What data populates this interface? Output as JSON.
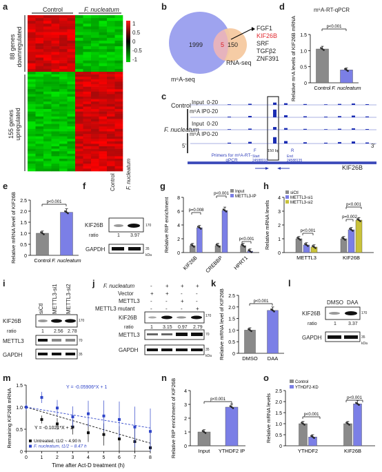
{
  "panels": {
    "a": {
      "letter": "a",
      "col_control": "Control",
      "col_fn": "F. nucleatum",
      "row_down": "88 genes downregulated",
      "row_up": "155 genes upregulated",
      "scale": [
        "1",
        "0.5",
        "0",
        "-0.5",
        "-1"
      ]
    },
    "b": {
      "letter": "b",
      "left_count": "1999",
      "overlap": "5",
      "right_count": "150",
      "left_label": "m⁶A-seq",
      "right_label": "RNA-seq",
      "genes": [
        "FGF1",
        "KIF26B",
        "SRF",
        "TGFβ2",
        "ZNF391"
      ],
      "highlight_color": "#e0292f"
    },
    "c": {
      "letter": "c",
      "cond_control": "Control",
      "cond_fn": "F. nucleatum",
      "track_input": "Input",
      "track_ip": "m⁶A IP",
      "scale": "0-20",
      "primers": "Primers for m⁶A-RT-qPCR",
      "start": "Start 24588010",
      "end": "End 24588135",
      "size": "150 bp",
      "f": "F",
      "r": "R",
      "gene": "KIF26B",
      "five": "5'",
      "three": "3'"
    },
    "d": {
      "letter": "d",
      "title": "m⁶A-RT-qPCR",
      "ylabel": "Relative m⁶A levels of KIF26B mRNA",
      "p": "p<0.001",
      "categories": [
        "Control",
        "F. nucleatum"
      ],
      "values": [
        1.05,
        0.4
      ],
      "yticks": [
        "0",
        "0.5",
        "1.0",
        "1.5"
      ]
    },
    "e": {
      "letter": "e",
      "ylabel": "Relative mRNA level of KIF26B",
      "p": "p<0.001",
      "categories": [
        "Control",
        "F. nucleatum"
      ],
      "values": [
        1.0,
        1.95
      ],
      "yticks": [
        "0",
        "0.5",
        "1.0",
        "1.5",
        "2.0",
        "2.5"
      ]
    },
    "f": {
      "letter": "f",
      "lanes": [
        "Control",
        "F. nucleatum"
      ],
      "rows": [
        "KIF26B",
        "GAPDH"
      ],
      "ratio_label": "ratio",
      "ratios": [
        "1",
        "3.97"
      ],
      "mw": [
        "170",
        "35"
      ],
      "kda": "kDa"
    },
    "g": {
      "letter": "g",
      "ylabel": "Relative RIP enrichment",
      "legend": [
        "Input",
        "METTL3-IP"
      ],
      "categories": [
        "KIF26B",
        "CREBBP",
        "HPRT1"
      ],
      "ps": [
        "p=0.008",
        "p<0.001",
        "p<0.001"
      ],
      "yticks": [
        "0",
        "2",
        "4",
        "6",
        "8"
      ]
    },
    "h": {
      "letter": "h",
      "ylabel": "Relative mRNA levels",
      "legend": [
        "siCtl",
        "METTL3-si1",
        "METTL3-si2"
      ],
      "categories": [
        "METTL3",
        "KIF26B"
      ],
      "ps": [
        "p<0.001",
        "p=0.002",
        "p<0.001"
      ],
      "yticks": [
        "0",
        "1",
        "2",
        "3",
        "4"
      ]
    },
    "i": {
      "letter": "i",
      "lanes": [
        "siCtl",
        "METTL3-si1",
        "METTL3-si2"
      ],
      "rows": [
        "KIF26B",
        "METTL3",
        "GAPDH"
      ],
      "ratio_label": "ratio",
      "ratios": [
        "1",
        "2.56",
        "2.78"
      ],
      "mw": [
        "170",
        "70",
        "35"
      ]
    },
    "j": {
      "letter": "j",
      "conditions": [
        "F. nucleatum",
        "Vector",
        "METTL3",
        "METTL3 mutant"
      ],
      "signs": [
        [
          "-",
          "+",
          "+",
          "+"
        ],
        [
          "+",
          "+",
          "-",
          "-"
        ],
        [
          "-",
          "-",
          "+",
          "-"
        ],
        [
          "-",
          "-",
          "-",
          "+"
        ]
      ],
      "rows": [
        "KIF26B",
        "METTL3",
        "GAPDH"
      ],
      "ratio_label": "ratio",
      "ratios": [
        "1",
        "3.15",
        "0.97",
        "2.79"
      ],
      "mw": [
        "170",
        "70",
        "35"
      ],
      "kda": "kDa"
    },
    "k": {
      "letter": "k",
      "ylabel": "Relative mRNA level of KIF26B",
      "p": "p<0.001",
      "categories": [
        "DMSO",
        "DAA"
      ],
      "values": [
        1.0,
        1.85
      ],
      "yticks": [
        "0",
        "0.5",
        "1.0",
        "1.5",
        "2.0",
        "2.5"
      ]
    },
    "l": {
      "letter": "l",
      "lanes": [
        "DMSO",
        "DAA"
      ],
      "rows": [
        "KIF26B",
        "GAPDH"
      ],
      "ratio_label": "ratio",
      "ratios": [
        "1",
        "3.37"
      ],
      "mw": [
        "170",
        "35"
      ],
      "kda": "kDa"
    },
    "m": {
      "letter": "m",
      "ylabel": "Remaining KIF26B mRNA",
      "xlabel": "Time after Act-D treatment (h)",
      "eq_fn": "Y = -0.05906*X + 1",
      "eq_ctl": "Y = -0.1021*X + 1",
      "legend": [
        "Untreated, t1/2 ~ 4.90 h",
        "F. nucleatum, t1/2 ~ 8.47 h"
      ],
      "xticks": [
        "0",
        "1",
        "2",
        "3",
        "4",
        "5",
        "6",
        "7",
        "8"
      ],
      "yticks": [
        "0",
        "0.5",
        "1.0",
        "1.5"
      ]
    },
    "n": {
      "letter": "n",
      "ylabel": "Relative RIP enrichment of KIF26B",
      "p": "p<0.001",
      "categories": [
        "Input",
        "YTHDF2 IP"
      ],
      "values": [
        1.0,
        2.8
      ],
      "yticks": [
        "0",
        "1",
        "2",
        "3",
        "4"
      ]
    },
    "o": {
      "letter": "o",
      "ylabel": "Relative mRNA levels",
      "legend": [
        "Control",
        "YTHDF2-KD"
      ],
      "categories": [
        "YTHDF2",
        "KIF26B"
      ],
      "ps": [
        "p<0.001",
        "p<0.001"
      ],
      "yticks": [
        "0",
        "0.5",
        "1.0",
        "1.5",
        "2.0",
        "2.5"
      ]
    }
  },
  "chart_data": [
    {
      "type": "bar",
      "panel": "d",
      "categories": [
        "Control",
        "F. nucleatum"
      ],
      "values": [
        1.05,
        0.4
      ],
      "ylim": [
        0,
        1.5
      ]
    },
    {
      "type": "bar",
      "panel": "e",
      "categories": [
        "Control",
        "F. nucleatum"
      ],
      "values": [
        1.0,
        1.95
      ],
      "ylim": [
        0,
        2.5
      ]
    },
    {
      "type": "bar",
      "panel": "g",
      "categories": [
        "KIF26B",
        "CREBBP",
        "HPRT1"
      ],
      "series": [
        {
          "name": "Input",
          "values": [
            1.0,
            1.0,
            1.0
          ]
        },
        {
          "name": "METTL3-IP",
          "values": [
            3.6,
            6.1,
            0.2
          ]
        }
      ],
      "ylim": [
        0,
        8
      ]
    },
    {
      "type": "bar",
      "panel": "h",
      "categories": [
        "METTL3",
        "KIF26B"
      ],
      "series": [
        {
          "name": "siCtl",
          "values": [
            1.0,
            1.0
          ]
        },
        {
          "name": "METTL3-si1",
          "values": [
            0.55,
            1.65
          ]
        },
        {
          "name": "METTL3-si2",
          "values": [
            0.4,
            2.35
          ]
        }
      ],
      "ylim": [
        0,
        4
      ]
    },
    {
      "type": "bar",
      "panel": "k",
      "categories": [
        "DMSO",
        "DAA"
      ],
      "values": [
        1.0,
        1.85
      ],
      "ylim": [
        0,
        2.5
      ]
    },
    {
      "type": "line",
      "panel": "m",
      "x": [
        0,
        1,
        2,
        3,
        4,
        5,
        6,
        7,
        8
      ],
      "series": [
        {
          "name": "Untreated, t1/2 ~ 4.90 h",
          "values": [
            1.0,
            0.72,
            0.62,
            0.55,
            0.42,
            0.38,
            0.28,
            0.22,
            0.08
          ]
        },
        {
          "name": "F. nucleatum, t1/2 ~ 8.47 h",
          "values": [
            1.0,
            1.22,
            0.98,
            0.78,
            0.85,
            0.8,
            0.72,
            0.55,
            0.45
          ]
        }
      ],
      "ylim": [
        0,
        1.5
      ]
    },
    {
      "type": "bar",
      "panel": "n",
      "categories": [
        "Input",
        "YTHDF2 IP"
      ],
      "values": [
        1.0,
        2.8
      ],
      "ylim": [
        0,
        4
      ]
    },
    {
      "type": "bar",
      "panel": "o",
      "categories": [
        "YTHDF2",
        "KIF26B"
      ],
      "series": [
        {
          "name": "Control",
          "values": [
            1.0,
            1.0
          ]
        },
        {
          "name": "YTHDF2-KD",
          "values": [
            0.4,
            1.9
          ]
        }
      ],
      "ylim": [
        0,
        2.5
      ]
    }
  ],
  "colors": {
    "gray": "#8a8a8a",
    "blue": "#7b7fe6",
    "yellow": "#c9c23a",
    "red": "#d91f26",
    "green": "#1fa13a",
    "venn_blue": "#9ea3ef",
    "venn_peach": "#f5c9a0"
  }
}
